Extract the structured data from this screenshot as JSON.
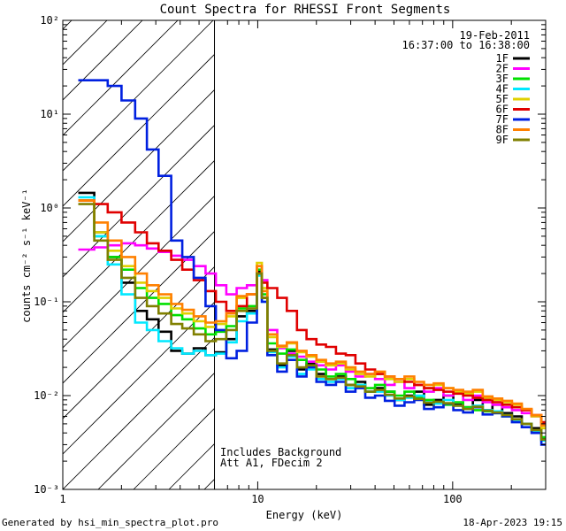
{
  "chart_data": {
    "type": "line",
    "title": "Count Spectra for RHESSI Front Segments",
    "xlabel": "Energy (keV)",
    "ylabel": "counts cm⁻² s⁻¹ keV⁻¹",
    "xscale": "log",
    "yscale": "log",
    "xlim": [
      1,
      300
    ],
    "ylim": [
      0.001,
      100
    ],
    "x_ticks": [
      {
        "value": 1,
        "label": "1"
      },
      {
        "value": 10,
        "label": "10"
      },
      {
        "value": 100,
        "label": "100"
      }
    ],
    "y_ticks": [
      {
        "value": 0.001,
        "label": "10⁻³"
      },
      {
        "value": 0.01,
        "label": "10⁻²"
      },
      {
        "value": 0.1,
        "label": "10⁻¹"
      },
      {
        "value": 1,
        "label": "10⁰"
      },
      {
        "value": 10,
        "label": "10¹"
      },
      {
        "value": 100,
        "label": "10²"
      }
    ],
    "shaded_region": {
      "x_range": [
        1,
        6
      ],
      "pattern": "diagonal hatch"
    },
    "vertical_line": 6,
    "annotations": {
      "date": "19-Feb-2011",
      "time_range": "16:37:00 to 16:38:00",
      "background_note": "Includes Background",
      "attenuator_note": "Att A1, FDecim 2"
    },
    "legend_position": "top-right",
    "energy_edges": [
      1.2,
      1.45,
      1.7,
      2.0,
      2.35,
      2.7,
      3.1,
      3.6,
      4.1,
      4.7,
      5.4,
      6.1,
      6.9,
      7.8,
      8.8,
      9.9,
      10.5,
      11.2,
      12.6,
      14.1,
      15.9,
      17.8,
      20.0,
      22.4,
      25.2,
      28.3,
      31.7,
      35.6,
      40.0,
      44.9,
      50.4,
      56.6,
      63.5,
      71.3,
      80.0,
      89.8,
      100.8,
      113.2,
      127.0,
      142.6,
      160.0,
      179.6,
      201.6,
      226.3,
      254.0,
      285.1
    ],
    "series": [
      {
        "name": "1F",
        "color": "#000000",
        "values": [
          1.45,
          0.55,
          0.3,
          0.16,
          0.08,
          0.065,
          0.048,
          0.03,
          0.028,
          0.032,
          0.027,
          0.029,
          0.04,
          0.07,
          0.08,
          0.21,
          0.11,
          0.031,
          0.021,
          0.03,
          0.019,
          0.022,
          0.017,
          0.015,
          0.016,
          0.013,
          0.014,
          0.011,
          0.012,
          0.011,
          0.009,
          0.01,
          0.011,
          0.008,
          0.009,
          0.01,
          0.008,
          0.0075,
          0.009,
          0.007,
          0.008,
          0.0065,
          0.006,
          0.005,
          0.0045,
          0.0035
        ]
      },
      {
        "name": "2F",
        "color": "#ff00ff",
        "values": [
          0.36,
          0.38,
          0.4,
          0.42,
          0.4,
          0.37,
          0.34,
          0.31,
          0.28,
          0.24,
          0.2,
          0.15,
          0.12,
          0.14,
          0.15,
          0.24,
          0.17,
          0.05,
          0.032,
          0.028,
          0.026,
          0.023,
          0.021,
          0.019,
          0.021,
          0.018,
          0.016,
          0.017,
          0.015,
          0.013,
          0.014,
          0.012,
          0.013,
          0.011,
          0.012,
          0.01,
          0.011,
          0.009,
          0.01,
          0.0085,
          0.008,
          0.0075,
          0.007,
          0.0065,
          0.006,
          0.005
        ]
      },
      {
        "name": "3F",
        "color": "#00e000",
        "values": [
          1.2,
          0.5,
          0.3,
          0.22,
          0.14,
          0.11,
          0.095,
          0.072,
          0.065,
          0.052,
          0.045,
          0.048,
          0.055,
          0.085,
          0.09,
          0.22,
          0.12,
          0.036,
          0.028,
          0.031,
          0.024,
          0.021,
          0.019,
          0.016,
          0.017,
          0.015,
          0.013,
          0.012,
          0.013,
          0.011,
          0.01,
          0.011,
          0.0095,
          0.009,
          0.0085,
          0.008,
          0.0085,
          0.0075,
          0.007,
          0.0068,
          0.0065,
          0.006,
          0.0055,
          0.005,
          0.0042,
          0.0036
        ]
      },
      {
        "name": "4F",
        "color": "#00e8ff",
        "values": [
          1.3,
          0.5,
          0.25,
          0.12,
          0.06,
          0.05,
          0.038,
          0.032,
          0.028,
          0.03,
          0.027,
          0.028,
          0.037,
          0.062,
          0.075,
          0.19,
          0.1,
          0.029,
          0.02,
          0.026,
          0.017,
          0.019,
          0.015,
          0.014,
          0.015,
          0.012,
          0.013,
          0.011,
          0.011,
          0.01,
          0.009,
          0.0095,
          0.01,
          0.0085,
          0.0082,
          0.009,
          0.0078,
          0.0072,
          0.0078,
          0.007,
          0.0068,
          0.0062,
          0.0055,
          0.005,
          0.0042,
          0.0033
        ]
      },
      {
        "name": "5F",
        "color": "#e0d000",
        "values": [
          1.2,
          0.55,
          0.35,
          0.24,
          0.16,
          0.13,
          0.11,
          0.085,
          0.075,
          0.062,
          0.054,
          0.058,
          0.07,
          0.11,
          0.12,
          0.26,
          0.14,
          0.042,
          0.033,
          0.036,
          0.029,
          0.026,
          0.023,
          0.021,
          0.022,
          0.019,
          0.017,
          0.016,
          0.017,
          0.015,
          0.014,
          0.015,
          0.013,
          0.012,
          0.013,
          0.012,
          0.011,
          0.0105,
          0.011,
          0.0095,
          0.009,
          0.0085,
          0.008,
          0.007,
          0.006,
          0.0045
        ]
      },
      {
        "name": "6F",
        "color": "#e00000",
        "values": [
          1.2,
          1.1,
          0.9,
          0.7,
          0.55,
          0.42,
          0.35,
          0.28,
          0.22,
          0.17,
          0.13,
          0.1,
          0.08,
          0.09,
          0.12,
          0.2,
          0.16,
          0.14,
          0.11,
          0.08,
          0.05,
          0.04,
          0.035,
          0.033,
          0.028,
          0.027,
          0.022,
          0.019,
          0.017,
          0.016,
          0.015,
          0.014,
          0.013,
          0.012,
          0.0115,
          0.011,
          0.0105,
          0.01,
          0.0095,
          0.009,
          0.0085,
          0.008,
          0.0075,
          0.007,
          0.0062,
          0.0052
        ]
      },
      {
        "name": "7F",
        "color": "#0020e0",
        "values": [
          23,
          23,
          20,
          14,
          9,
          4.2,
          2.2,
          0.45,
          0.3,
          0.18,
          0.09,
          0.05,
          0.025,
          0.03,
          0.06,
          0.2,
          0.1,
          0.027,
          0.018,
          0.024,
          0.016,
          0.02,
          0.014,
          0.013,
          0.014,
          0.011,
          0.012,
          0.0095,
          0.01,
          0.0088,
          0.0078,
          0.0085,
          0.009,
          0.0072,
          0.0075,
          0.0082,
          0.007,
          0.0066,
          0.0075,
          0.0063,
          0.0065,
          0.006,
          0.0052,
          0.0046,
          0.004,
          0.003
        ]
      },
      {
        "name": "8F",
        "color": "#ff8000",
        "values": [
          1.2,
          0.7,
          0.45,
          0.3,
          0.2,
          0.15,
          0.12,
          0.095,
          0.082,
          0.07,
          0.06,
          0.062,
          0.075,
          0.115,
          0.12,
          0.24,
          0.13,
          0.045,
          0.034,
          0.037,
          0.03,
          0.027,
          0.024,
          0.022,
          0.023,
          0.02,
          0.018,
          0.017,
          0.018,
          0.016,
          0.015,
          0.016,
          0.014,
          0.013,
          0.0135,
          0.012,
          0.0115,
          0.011,
          0.0115,
          0.0098,
          0.0093,
          0.0088,
          0.0082,
          0.0072,
          0.0062,
          0.0048
        ]
      },
      {
        "name": "9F",
        "color": "#808000",
        "values": [
          1.1,
          0.45,
          0.28,
          0.18,
          0.11,
          0.09,
          0.075,
          0.058,
          0.052,
          0.045,
          0.038,
          0.04,
          0.05,
          0.08,
          0.085,
          0.2,
          0.11,
          0.03,
          0.022,
          0.027,
          0.02,
          0.021,
          0.016,
          0.015,
          0.0155,
          0.013,
          0.0125,
          0.011,
          0.0115,
          0.0102,
          0.0093,
          0.0098,
          0.0092,
          0.0084,
          0.0086,
          0.0083,
          0.0078,
          0.0072,
          0.0076,
          0.0069,
          0.0066,
          0.0062,
          0.0056,
          0.005,
          0.0043,
          0.0034
        ]
      }
    ]
  },
  "footer": {
    "generator": "Generated by hsi_min_spectra_plot.pro",
    "timestamp": "18-Apr-2023 19:15"
  }
}
